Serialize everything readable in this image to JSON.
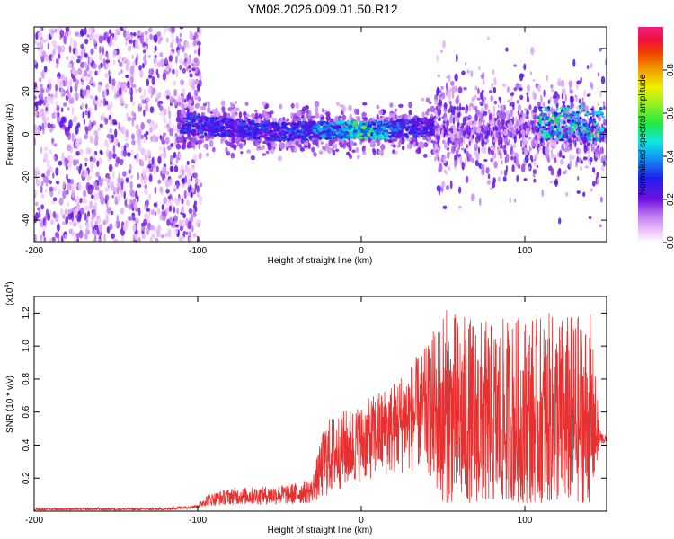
{
  "chart_data": [
    {
      "type": "heatmap",
      "title": "YM08.2026.009.01.50.R12",
      "xlabel": "Height of straight line (km)",
      "ylabel": "Frequency (Hz)",
      "xlim": [
        -200,
        150
      ],
      "ylim": [
        -50,
        50
      ],
      "xticks": [
        -200,
        -100,
        0,
        100
      ],
      "yticks": [
        -40,
        -20,
        0,
        20,
        40
      ],
      "colorbar": {
        "label": "Normalized spectral amplitude",
        "range": [
          0,
          1
        ],
        "ticks": [
          "0.0",
          "0.2",
          "0.4",
          "0.6",
          "0.8"
        ],
        "tick_values": [
          0,
          0.2,
          0.4,
          0.6,
          0.8
        ]
      },
      "ridge": {
        "x": [
          -110,
          -80,
          -50,
          -20,
          0,
          20,
          45
        ],
        "center_hz": [
          5,
          3,
          1,
          2,
          2,
          2,
          4
        ],
        "peak_amplitude": [
          0.3,
          0.3,
          0.3,
          0.4,
          0.55,
          0.35,
          0.25
        ]
      },
      "noise_region_x": [
        -200,
        -100
      ],
      "broadband_region_x": [
        45,
        150
      ],
      "colors": [
        "#cda8f0",
        "#7a1ee6",
        "#2a3cf0",
        "#1ee0f0",
        "#40f040",
        "#f0f000",
        "#f08000",
        "#e02020"
      ]
    },
    {
      "type": "line",
      "xlabel": "Height of straight line (km)",
      "ylabel": "SNR (10 * v/v)",
      "y_scale_label": "(x10",
      "y_scale_exponent": "4",
      "y_scale_close": ")",
      "xlim": [
        -200,
        150
      ],
      "ylim": [
        0,
        1.3
      ],
      "xticks": [
        -200,
        -100,
        0,
        100
      ],
      "yticks": [
        "0.2",
        "0.4",
        "0.6",
        "0.8",
        "1.0",
        "1.2"
      ],
      "ytick_values": [
        0.2,
        0.4,
        0.6,
        0.8,
        1.0,
        1.2
      ],
      "envelope": {
        "x": [
          -200,
          -120,
          -100,
          -95,
          -80,
          -60,
          -40,
          -30,
          -22,
          -15,
          0,
          20,
          40,
          50,
          60,
          80,
          100,
          120,
          140,
          146,
          150
        ],
        "floor": [
          0.005,
          0.005,
          0.02,
          0.03,
          0.04,
          0.04,
          0.04,
          0.05,
          0.08,
          0.12,
          0.18,
          0.22,
          0.25,
          0.05,
          0.05,
          0.05,
          0.05,
          0.05,
          0.05,
          0.4,
          0.42
        ],
        "peak": [
          0.02,
          0.02,
          0.04,
          0.1,
          0.14,
          0.15,
          0.17,
          0.2,
          0.55,
          0.6,
          0.65,
          0.8,
          1.0,
          1.25,
          1.2,
          1.15,
          1.2,
          1.2,
          1.2,
          0.5,
          0.45
        ]
      },
      "series_color": "#e83030"
    }
  ]
}
